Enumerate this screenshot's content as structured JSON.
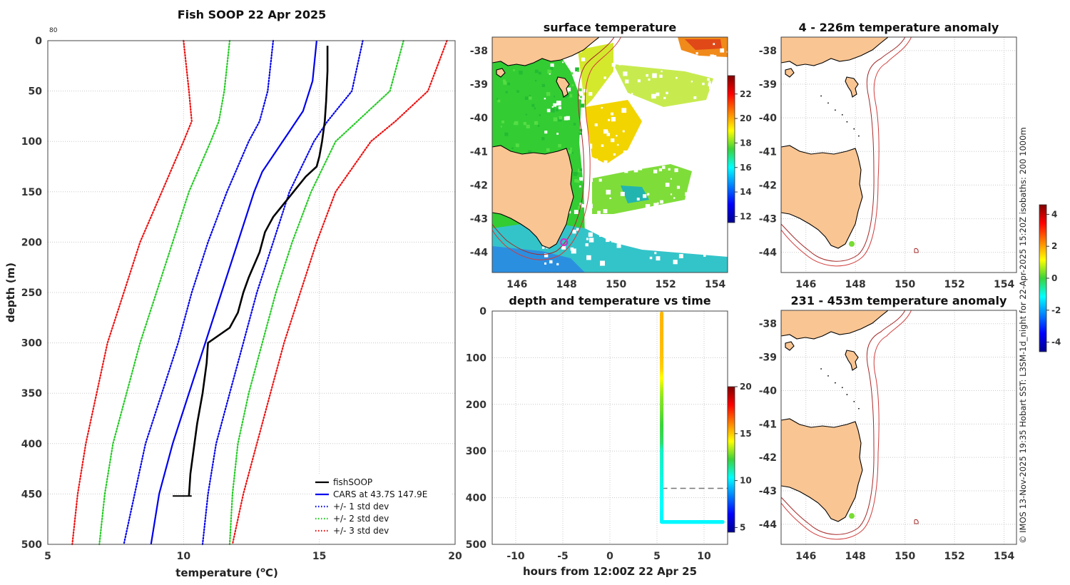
{
  "chart_data": [
    {
      "type": "line",
      "title": "Fish SOOP 22 Apr 2025",
      "top_left_note": "80",
      "xlabel": "temperature (",
      "xlabel_sup": "o",
      "xlabel_tail": "C)",
      "ylabel": "depth (m)",
      "xlim": [
        5,
        20
      ],
      "ylim": [
        500,
        0
      ],
      "xticks": [
        5,
        10,
        15,
        20
      ],
      "yticks": [
        0,
        50,
        100,
        150,
        200,
        250,
        300,
        350,
        400,
        450,
        500
      ],
      "legend": [
        "fishSOOP",
        "CARS at 43.7S 147.9E",
        "+/- 1 std dev",
        "+/- 2 std dev",
        "+/- 3 std dev"
      ],
      "series": [
        {
          "name": "fishSOOP",
          "color": "#000000",
          "style": "solid",
          "depth": [
            5,
            30,
            60,
            80,
            100,
            115,
            125,
            135,
            145,
            155,
            165,
            175,
            190,
            210,
            235,
            250,
            270,
            285,
            300,
            320,
            350,
            380,
            400,
            430,
            452
          ],
          "temp": [
            15.3,
            15.3,
            15.25,
            15.2,
            15.1,
            15.0,
            14.9,
            14.5,
            14.2,
            13.9,
            13.6,
            13.3,
            13.0,
            12.8,
            12.4,
            12.2,
            12.0,
            11.7,
            10.9,
            10.85,
            10.7,
            10.5,
            10.4,
            10.25,
            10.2
          ]
        },
        {
          "name": "CARS at 43.7S 147.9E",
          "color": "#0000ee",
          "style": "solid",
          "depth": [
            0,
            40,
            70,
            90,
            110,
            130,
            150,
            200,
            250,
            300,
            350,
            400,
            450,
            500
          ],
          "temp": [
            14.9,
            14.75,
            14.4,
            13.9,
            13.4,
            12.9,
            12.6,
            12.0,
            11.4,
            10.8,
            10.2,
            9.6,
            9.1,
            8.8
          ]
        },
        {
          "name": "+1 std dev",
          "color": "#0000ee",
          "style": "dot",
          "depth": [
            0,
            50,
            80,
            100,
            150,
            200,
            250,
            300,
            350,
            400,
            450,
            500
          ],
          "temp": [
            16.6,
            16.2,
            15.3,
            14.8,
            13.9,
            13.3,
            12.7,
            12.2,
            11.7,
            11.2,
            10.9,
            10.7
          ]
        },
        {
          "name": "-1 std dev",
          "color": "#0000ee",
          "style": "dot",
          "depth": [
            0,
            50,
            80,
            100,
            150,
            200,
            250,
            300,
            350,
            400,
            450,
            500
          ],
          "temp": [
            13.3,
            13.1,
            12.8,
            12.4,
            11.6,
            10.9,
            10.3,
            9.8,
            9.2,
            8.6,
            8.2,
            7.8
          ]
        },
        {
          "name": "+2 std dev",
          "color": "#22cc22",
          "style": "dot",
          "depth": [
            0,
            50,
            80,
            100,
            150,
            200,
            250,
            300,
            350,
            400,
            450,
            500
          ],
          "temp": [
            18.1,
            17.6,
            16.4,
            15.6,
            14.7,
            14.0,
            13.4,
            12.9,
            12.4,
            12.0,
            11.8,
            11.7
          ]
        },
        {
          "name": "-2 std dev",
          "color": "#22cc22",
          "style": "dot",
          "depth": [
            0,
            50,
            80,
            100,
            150,
            200,
            250,
            300,
            350,
            400,
            450,
            500
          ],
          "temp": [
            11.7,
            11.5,
            11.3,
            11.0,
            10.2,
            9.6,
            9.0,
            8.4,
            7.9,
            7.4,
            7.1,
            6.9
          ]
        },
        {
          "name": "+3 std dev",
          "color": "#ee1111",
          "style": "dot",
          "depth": [
            0,
            50,
            80,
            100,
            150,
            200,
            250,
            300,
            350,
            400,
            450,
            500
          ],
          "temp": [
            19.7,
            19.0,
            17.8,
            16.9,
            15.6,
            14.9,
            14.3,
            13.7,
            13.2,
            12.7,
            12.2,
            11.8
          ]
        },
        {
          "name": "-3 std dev",
          "color": "#ee1111",
          "style": "dot",
          "depth": [
            0,
            50,
            80,
            100,
            150,
            200,
            250,
            300,
            350,
            400,
            450,
            500
          ],
          "temp": [
            10.0,
            10.2,
            10.3,
            10.0,
            9.2,
            8.4,
            7.8,
            7.2,
            6.8,
            6.4,
            6.1,
            5.9
          ]
        }
      ]
    },
    {
      "type": "heatmap",
      "title": "surface temperature",
      "xticks": [
        146,
        148,
        150,
        152,
        154
      ],
      "yticks": [
        -38,
        -39,
        -40,
        -41,
        -42,
        -43,
        -44
      ],
      "xlim": [
        145,
        154.5
      ],
      "ylim": [
        -44.6,
        -37.6
      ],
      "colorbar_ticks": [
        12,
        14,
        16,
        18,
        20,
        22
      ],
      "colorbar_range": [
        11.5,
        23.5
      ],
      "marker": {
        "lon": 147.9,
        "lat": -43.7,
        "color": "#cc33cc"
      }
    },
    {
      "type": "scatter",
      "title": "depth and temperature vs time",
      "xlabel": "hours from 12:00Z 22 Apr 25",
      "xlim": [
        -12.5,
        12.5
      ],
      "ylim": [
        500,
        0
      ],
      "xticks": [
        -10,
        -5,
        0,
        5,
        10
      ],
      "yticks": [
        0,
        100,
        200,
        300,
        400,
        500
      ],
      "colorbar_ticks": [
        5,
        10,
        15,
        20
      ],
      "colorbar_range": [
        4.5,
        20
      ],
      "dashed_line_depth": 380,
      "descent": {
        "hour": 5.5,
        "depth_from": 5,
        "depth_to": 450
      },
      "bottom": {
        "depth": 452,
        "hour_from": 5.5,
        "hour_to": 12.0
      }
    },
    {
      "type": "heatmap",
      "title": "4 - 226m temperature anomaly",
      "xticks": [
        146,
        148,
        150,
        152,
        154
      ],
      "yticks": [
        -38,
        -39,
        -40,
        -41,
        -42,
        -43,
        -44
      ],
      "xlim": [
        145,
        154.5
      ],
      "ylim": [
        -44.6,
        -37.6
      ],
      "marker": {
        "lon": 147.85,
        "lat": -43.75,
        "color": "#77dd33"
      }
    },
    {
      "type": "heatmap",
      "title": "231 - 453m temperature anomaly",
      "xticks": [
        146,
        148,
        150,
        152,
        154
      ],
      "yticks": [
        -38,
        -39,
        -40,
        -41,
        -42,
        -43,
        -44
      ],
      "xlim": [
        145,
        154.5
      ],
      "ylim": [
        -44.6,
        -37.6
      ],
      "marker": {
        "lon": 147.85,
        "lat": -43.75,
        "color": "#77dd33"
      },
      "colorbar_ticks": [
        -4,
        -2,
        0,
        2,
        4
      ],
      "colorbar_range": [
        -4.6,
        4.6
      ]
    }
  ],
  "side_note": "© IMOS 13-Nov-2025 19:35 Hobart SST: L3SM-1d_night for 22-Apr-2025 15:20Z isobaths: 200  1000m",
  "colors": {
    "land": "#f9c593",
    "isobath": "#a52a2a"
  }
}
